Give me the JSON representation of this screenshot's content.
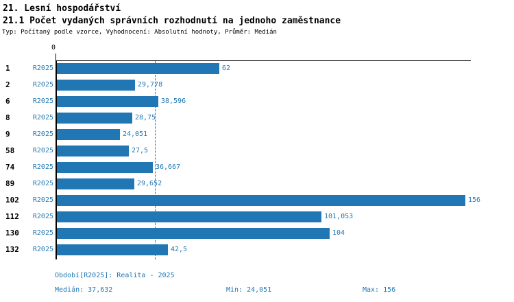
{
  "header": {
    "title_line1": "21. Lesní hospodářství",
    "title_line2": "21.1 Počet vydaných správních rozhodnutí na jednoho zaměstnance",
    "subtitle": "Typ: Počítaný podle vzorce, Vyhodnocení: Absolutní hodnoty, Průměr: Medián"
  },
  "chart_data": {
    "type": "bar",
    "orientation": "horizontal",
    "origin_tick_label": "0",
    "series_label": "R2025",
    "categories": [
      "1",
      "2",
      "6",
      "8",
      "9",
      "58",
      "74",
      "89",
      "102",
      "112",
      "130",
      "132"
    ],
    "values": [
      62,
      29.778,
      38.596,
      28.75,
      24.051,
      27.5,
      36.667,
      29.652,
      156,
      101.053,
      104,
      42.5
    ],
    "value_labels": [
      "62",
      "29,778",
      "38,596",
      "28,75",
      "24,051",
      "27,5",
      "36,667",
      "29,652",
      "156",
      "101,053",
      "104",
      "42,5"
    ],
    "xlim": [
      0,
      158
    ],
    "median_value": 37.632,
    "median_line_style": "dashed",
    "grid": false,
    "legend_position": "none",
    "bar_color": "#2077b4"
  },
  "footer": {
    "period_label": "Období[R2025]: Realita - 2025",
    "median_label": "Medián: 37,632",
    "min_label": "Min: 24,051",
    "max_label": "Max: 156"
  },
  "colors": {
    "accent": "#2077b4",
    "text": "#000000",
    "background": "#ffffff"
  }
}
